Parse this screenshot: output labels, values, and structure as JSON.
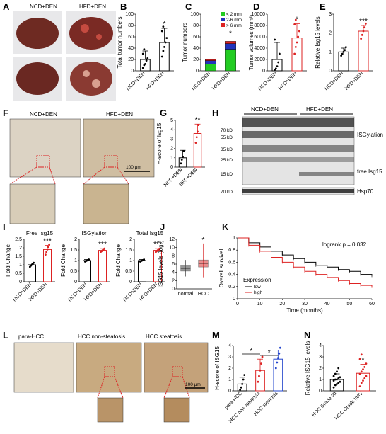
{
  "figure": {
    "panels": {
      "A": {
        "letter": "A",
        "label_ncd": "NCD+DEN",
        "label_hfd": "HFD+DEN"
      },
      "F": {
        "letter": "F",
        "label_ncd": "NCD+DEN",
        "label_hfd": "HFD+DEN",
        "scale_bar": "100 μm"
      },
      "H": {
        "letter": "H",
        "label_ncd": "NCD+DEN",
        "label_hfd": "HFD+DEN",
        "markers": [
          "70 kD",
          "55 kD",
          "35 kD",
          "25 kD",
          "15 kD"
        ],
        "marker_hsp": "70 kD",
        "band_isgylation": "ISGylation",
        "band_free": "free Isg15",
        "band_hsp": "Hsp70"
      },
      "L": {
        "letter": "L",
        "titles": [
          "para-HCC",
          "HCC non-steatosis",
          "HCC steatosis"
        ],
        "scale_bar": "100 μm"
      }
    }
  },
  "chart_data": [
    {
      "id": "B",
      "type": "scatter-bar",
      "ylabel": "Total tumor numbers",
      "ylim": [
        0,
        100
      ],
      "yticks": [
        0,
        20,
        40,
        60,
        80,
        100
      ],
      "categories": [
        "NCD+DEN",
        "HFD+DEN"
      ],
      "means": [
        20,
        50
      ],
      "sd": [
        15,
        25
      ],
      "points": [
        [
          5,
          10,
          12,
          18,
          22,
          30,
          38
        ],
        [
          25,
          35,
          42,
          50,
          58,
          70,
          78
        ]
      ],
      "significance": [
        "",
        "*"
      ],
      "colors": [
        "#000000",
        "#000000"
      ]
    },
    {
      "id": "C",
      "type": "stacked-bar",
      "ylabel": "Tumor numbers",
      "ylim": [
        0,
        100
      ],
      "yticks": [
        0,
        20,
        40,
        60,
        80,
        100
      ],
      "categories": [
        "NCD+DEN",
        "HFD+DEN"
      ],
      "series": [
        {
          "name": "< 2 mm",
          "values": [
            12,
            38
          ],
          "color": "#22cc22"
        },
        {
          "name": "2-6 mm",
          "values": [
            6,
            10
          ],
          "color": "#2233bb"
        },
        {
          "name": "> 6 mm",
          "values": [
            2,
            4
          ],
          "color": "#dd2222"
        }
      ],
      "significance": [
        "",
        "*"
      ]
    },
    {
      "id": "D",
      "type": "scatter-bar",
      "ylabel": "Tumor volumes (mm³)",
      "ylim": [
        0,
        10000
      ],
      "yticks": [
        0,
        2000,
        4000,
        6000,
        8000,
        10000
      ],
      "categories": [
        "NCD+DEN",
        "HFD+DEN"
      ],
      "means": [
        2000,
        5800
      ],
      "sd": [
        3000,
        2500
      ],
      "points": [
        [
          200,
          400,
          800,
          1500,
          3000,
          5500
        ],
        [
          3000,
          4200,
          5000,
          6000,
          7000,
          8200,
          9000
        ]
      ],
      "significance": [
        "",
        "*"
      ],
      "colors": [
        "#000000",
        "#dd2222"
      ]
    },
    {
      "id": "E",
      "type": "scatter-bar",
      "ylabel": "Relative Isg15 levels",
      "ylim": [
        0,
        3
      ],
      "yticks": [
        0,
        1,
        2,
        3
      ],
      "categories": [
        "NCD+DEN",
        "HFD+DEN"
      ],
      "means": [
        1.0,
        2.1
      ],
      "sd": [
        0.2,
        0.3
      ],
      "points": [
        [
          0.8,
          0.9,
          1.0,
          1.1,
          1.25
        ],
        [
          1.7,
          1.9,
          2.1,
          2.3,
          2.5
        ]
      ],
      "significance": [
        "",
        "***"
      ],
      "colors": [
        "#000000",
        "#dd2222"
      ]
    },
    {
      "id": "G",
      "type": "scatter-bar",
      "ylabel": "H-score of Isg15",
      "ylim": [
        0,
        5
      ],
      "yticks": [
        0,
        1,
        2,
        3,
        4,
        5
      ],
      "categories": [
        "NCD+DEN",
        "HFD+DEN"
      ],
      "means": [
        1.0,
        3.6
      ],
      "sd": [
        0.8,
        1.0
      ],
      "points": [
        [
          0.4,
          0.8,
          1.1,
          1.7
        ],
        [
          2.6,
          3.2,
          3.8,
          4.5
        ]
      ],
      "significance": [
        "",
        "**"
      ],
      "colors": [
        "#000000",
        "#dd2222"
      ]
    },
    {
      "id": "I1",
      "type": "scatter-bar",
      "title": "Free Isg15",
      "ylabel": "Fold Change",
      "ylim": [
        0,
        2.5
      ],
      "yticks": [
        0.0,
        0.5,
        1.0,
        1.5,
        2.0,
        2.5
      ],
      "categories": [
        "NCD+DEN",
        "HFD+DEN"
      ],
      "means": [
        1.0,
        1.9
      ],
      "sd": [
        0.1,
        0.25
      ],
      "points": [
        [
          0.88,
          0.95,
          1.0,
          1.05,
          1.12
        ],
        [
          1.6,
          1.75,
          1.9,
          2.05,
          2.2
        ]
      ],
      "significance": [
        "",
        "***"
      ],
      "colors": [
        "#000000",
        "#dd2222"
      ]
    },
    {
      "id": "I2",
      "type": "scatter-bar",
      "title": "ISGylation",
      "ylabel": "Fold Change",
      "ylim": [
        0,
        2.0
      ],
      "yticks": [
        0.0,
        0.5,
        1.0,
        1.5,
        2.0
      ],
      "categories": [
        "NCD+DEN",
        "HFD+DEN"
      ],
      "means": [
        1.0,
        1.48
      ],
      "sd": [
        0.05,
        0.08
      ],
      "points": [
        [
          0.95,
          0.98,
          1.0,
          1.02,
          1.05
        ],
        [
          1.4,
          1.44,
          1.48,
          1.52,
          1.56
        ]
      ],
      "significance": [
        "",
        "***"
      ],
      "colors": [
        "#000000",
        "#dd2222"
      ]
    },
    {
      "id": "I3",
      "type": "scatter-bar",
      "title": "Total Isg15",
      "ylabel": "Fold Change",
      "ylim": [
        0,
        2.0
      ],
      "yticks": [
        0.0,
        0.5,
        1.0,
        1.5,
        2.0
      ],
      "categories": [
        "NCD+DEN",
        "HFD+DEN"
      ],
      "means": [
        1.0,
        1.48
      ],
      "sd": [
        0.05,
        0.08
      ],
      "points": [
        [
          0.95,
          0.98,
          1.0,
          1.02,
          1.05
        ],
        [
          1.4,
          1.44,
          1.48,
          1.52,
          1.56
        ]
      ],
      "significance": [
        "",
        "***"
      ],
      "colors": [
        "#000000",
        "#dd2222"
      ]
    },
    {
      "id": "J",
      "type": "box",
      "ylabel": "ISG15 levels (log₂)",
      "ylim": [
        0,
        12
      ],
      "yticks": [
        0,
        2,
        4,
        6,
        8,
        10,
        12
      ],
      "categories": [
        "normal",
        "HCC"
      ],
      "boxes": [
        {
          "q1": 4.3,
          "median": 5.0,
          "q3": 5.7,
          "min": 3.0,
          "max": 7.0,
          "color": "#555555"
        },
        {
          "q1": 5.3,
          "median": 6.2,
          "q3": 7.0,
          "min": 2.8,
          "max": 11.0,
          "color": "#dd4444"
        }
      ],
      "significance": [
        "",
        "*"
      ]
    },
    {
      "id": "K",
      "type": "line",
      "ylabel": "Overall survival",
      "xlabel": "Time (months)",
      "xlim": [
        0,
        60
      ],
      "xticks": [
        0,
        10,
        20,
        30,
        40,
        50,
        60
      ],
      "ylim": [
        0,
        1
      ],
      "yticks": [
        0.0,
        0.2,
        0.4,
        0.6,
        0.8,
        1.0
      ],
      "annotation": "logrank p = 0.032",
      "legend_title": "Expression",
      "series": [
        {
          "name": "low",
          "color": "#000000",
          "x": [
            0,
            5,
            10,
            15,
            20,
            25,
            30,
            35,
            40,
            45,
            50,
            55,
            60
          ],
          "y": [
            1.0,
            0.92,
            0.85,
            0.78,
            0.72,
            0.66,
            0.6,
            0.55,
            0.52,
            0.48,
            0.45,
            0.4,
            0.38
          ]
        },
        {
          "name": "high",
          "color": "#dd2222",
          "x": [
            0,
            5,
            10,
            15,
            20,
            25,
            30,
            35,
            40,
            45,
            50,
            55,
            60
          ],
          "y": [
            1.0,
            0.88,
            0.78,
            0.68,
            0.6,
            0.52,
            0.45,
            0.4,
            0.35,
            0.3,
            0.25,
            0.22,
            0.2
          ]
        }
      ]
    },
    {
      "id": "M",
      "type": "scatter-bar",
      "ylabel": "H-score of ISG15",
      "ylim": [
        0,
        4
      ],
      "yticks": [
        0,
        1,
        2,
        3,
        4
      ],
      "categories": [
        "para-HCC",
        "HCC non-steatosis",
        "HCC steatosis"
      ],
      "means": [
        0.6,
        1.8,
        2.8
      ],
      "sd": [
        0.6,
        1.0,
        0.8
      ],
      "points": [
        [
          0.1,
          0.3,
          0.6,
          1.0,
          1.4
        ],
        [
          0.8,
          1.3,
          1.8,
          2.4,
          3.0
        ],
        [
          2.0,
          2.5,
          2.9,
          3.3,
          3.8
        ]
      ],
      "significance_pairs": [
        [
          "para-HCC",
          "HCC non-steatosis",
          "*"
        ],
        [
          "HCC non-steatosis",
          "HCC steatosis",
          "*"
        ]
      ],
      "colors": [
        "#000000",
        "#dd2222",
        "#2244cc"
      ]
    },
    {
      "id": "N",
      "type": "scatter-bar",
      "ylabel": "Relative ISG15 levels",
      "ylim": [
        0,
        4
      ],
      "yticks": [
        0,
        1,
        2,
        3,
        4
      ],
      "categories": [
        "HCC Grade I/II",
        "HCC Grade III/IV"
      ],
      "means": [
        1.0,
        1.55
      ],
      "sd": [
        0.5,
        0.8
      ],
      "points": [
        [
          0.3,
          0.5,
          0.6,
          0.7,
          0.8,
          0.9,
          1.0,
          1.0,
          1.1,
          1.2,
          1.3,
          1.5,
          1.7,
          2.0
        ],
        [
          0.4,
          0.7,
          0.9,
          1.1,
          1.3,
          1.5,
          1.7,
          1.9,
          2.1,
          2.4,
          2.8,
          3.2
        ]
      ],
      "significance": [
        "",
        "*"
      ],
      "colors": [
        "#000000",
        "#dd2222"
      ]
    }
  ]
}
